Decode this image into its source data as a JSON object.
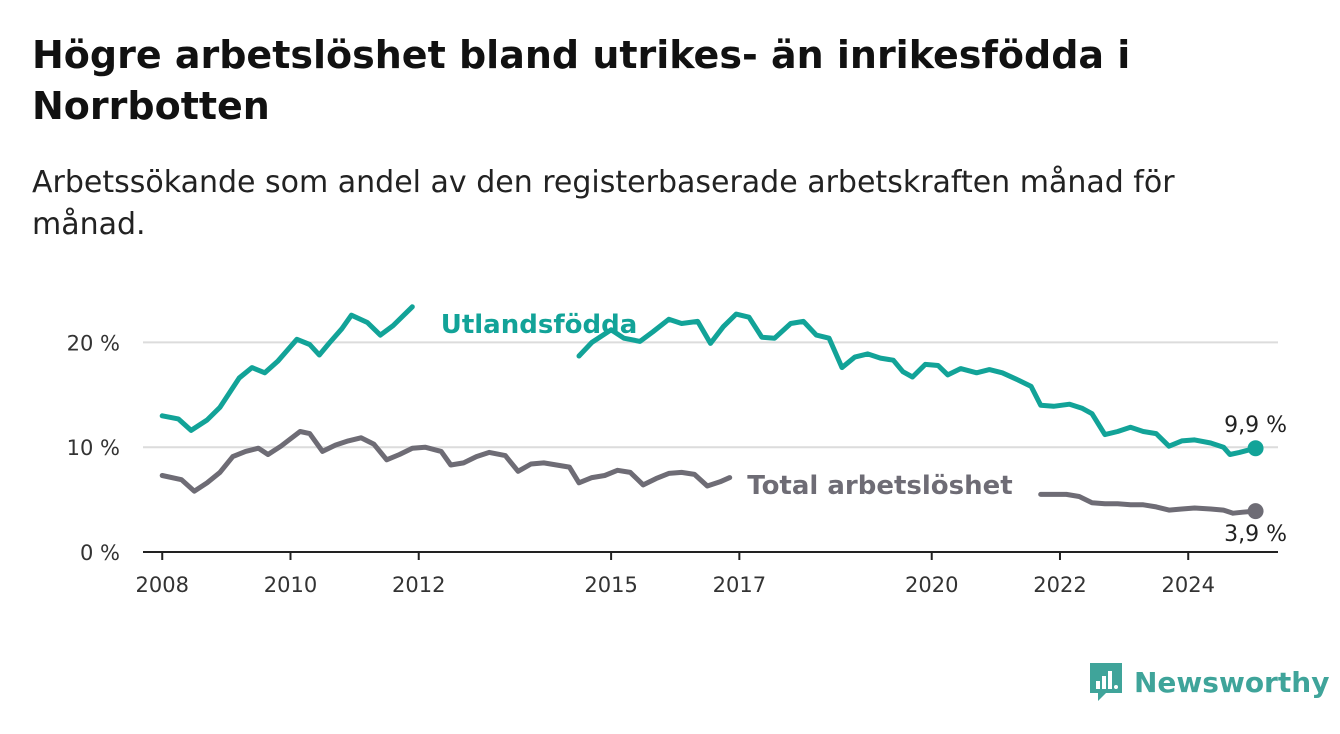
{
  "header": {
    "title": "Högre arbetslöshet bland utrikes- än inrikesfödda i Norrbotten",
    "subtitle": "Arbetssökande som andel av den registerbaserade arbetskraften månad för månad."
  },
  "brand": {
    "name": "Newsworthy",
    "icon": "newsworthy-logo-icon",
    "color": "#3fa49a"
  },
  "colors": {
    "foreign_born": "#12a398",
    "total": "#6e6c75",
    "axis": "#222222",
    "grid": "#dcdcdc"
  },
  "chart_data": {
    "type": "line",
    "y_ticks": [
      "0 %",
      "10 %",
      "20 %"
    ],
    "x_ticks": [
      "2008",
      "2010",
      "2012",
      "2015",
      "2017",
      "2020",
      "2022",
      "2024"
    ],
    "ylim": [
      0,
      25
    ],
    "xlim": [
      2007.7,
      2025.4
    ],
    "grid": true,
    "series": [
      {
        "name": "Utlandsfödda",
        "end_label": "9,9 %",
        "points": [
          [
            2008.0,
            13.0
          ],
          [
            2008.25,
            12.7
          ],
          [
            2008.45,
            11.6
          ],
          [
            2008.7,
            12.6
          ],
          [
            2008.9,
            13.8
          ],
          [
            2009.2,
            16.6
          ],
          [
            2009.4,
            17.6
          ],
          [
            2009.6,
            17.1
          ],
          [
            2009.8,
            18.2
          ],
          [
            2010.0,
            19.6
          ],
          [
            2010.1,
            20.3
          ],
          [
            2010.3,
            19.8
          ],
          [
            2010.45,
            18.8
          ],
          [
            2010.6,
            19.9
          ],
          [
            2010.8,
            21.3
          ],
          [
            2010.95,
            22.6
          ],
          [
            2011.2,
            21.9
          ],
          [
            2011.4,
            20.7
          ],
          [
            2011.6,
            21.6
          ],
          [
            2011.9,
            23.4
          ],
          [
            2014.5,
            18.7
          ],
          [
            2014.7,
            20.0
          ],
          [
            2015.0,
            21.2
          ],
          [
            2015.2,
            20.4
          ],
          [
            2015.45,
            20.1
          ],
          [
            2015.65,
            21.0
          ],
          [
            2015.9,
            22.2
          ],
          [
            2016.1,
            21.8
          ],
          [
            2016.35,
            22.0
          ],
          [
            2016.55,
            19.9
          ],
          [
            2016.75,
            21.5
          ],
          [
            2016.95,
            22.7
          ],
          [
            2017.15,
            22.4
          ],
          [
            2017.35,
            20.5
          ],
          [
            2017.55,
            20.4
          ],
          [
            2017.8,
            21.8
          ],
          [
            2018.0,
            22.0
          ],
          [
            2018.2,
            20.7
          ],
          [
            2018.4,
            20.4
          ],
          [
            2018.6,
            17.6
          ],
          [
            2018.8,
            18.6
          ],
          [
            2019.0,
            18.9
          ],
          [
            2019.2,
            18.5
          ],
          [
            2019.4,
            18.3
          ],
          [
            2019.55,
            17.2
          ],
          [
            2019.7,
            16.7
          ],
          [
            2019.9,
            17.9
          ],
          [
            2020.1,
            17.8
          ],
          [
            2020.25,
            16.9
          ],
          [
            2020.45,
            17.5
          ],
          [
            2020.7,
            17.1
          ],
          [
            2020.9,
            17.4
          ],
          [
            2021.1,
            17.1
          ],
          [
            2021.35,
            16.4
          ],
          [
            2021.55,
            15.8
          ],
          [
            2021.7,
            14.0
          ],
          [
            2021.9,
            13.9
          ],
          [
            2022.15,
            14.1
          ],
          [
            2022.35,
            13.7
          ],
          [
            2022.5,
            13.2
          ],
          [
            2022.7,
            11.2
          ],
          [
            2022.9,
            11.5
          ],
          [
            2023.1,
            11.9
          ],
          [
            2023.3,
            11.5
          ],
          [
            2023.5,
            11.3
          ],
          [
            2023.7,
            10.1
          ],
          [
            2023.9,
            10.6
          ],
          [
            2024.1,
            10.7
          ],
          [
            2024.35,
            10.4
          ],
          [
            2024.55,
            10.0
          ],
          [
            2024.65,
            9.3
          ],
          [
            2024.8,
            9.5
          ],
          [
            2025.05,
            9.9
          ]
        ]
      },
      {
        "name": "Total arbetslöshet",
        "end_label": "3,9 %",
        "points": [
          [
            2008.0,
            7.3
          ],
          [
            2008.3,
            6.9
          ],
          [
            2008.5,
            5.8
          ],
          [
            2008.7,
            6.6
          ],
          [
            2008.9,
            7.6
          ],
          [
            2009.1,
            9.1
          ],
          [
            2009.3,
            9.6
          ],
          [
            2009.5,
            9.9
          ],
          [
            2009.65,
            9.3
          ],
          [
            2009.85,
            10.1
          ],
          [
            2010.0,
            10.8
          ],
          [
            2010.15,
            11.5
          ],
          [
            2010.3,
            11.3
          ],
          [
            2010.5,
            9.6
          ],
          [
            2010.7,
            10.2
          ],
          [
            2010.9,
            10.6
          ],
          [
            2011.1,
            10.9
          ],
          [
            2011.3,
            10.3
          ],
          [
            2011.5,
            8.8
          ],
          [
            2011.7,
            9.3
          ],
          [
            2011.9,
            9.9
          ],
          [
            2012.1,
            10.0
          ],
          [
            2012.35,
            9.6
          ],
          [
            2012.5,
            8.3
          ],
          [
            2012.7,
            8.5
          ],
          [
            2012.9,
            9.1
          ],
          [
            2013.1,
            9.5
          ],
          [
            2013.35,
            9.2
          ],
          [
            2013.55,
            7.7
          ],
          [
            2013.75,
            8.4
          ],
          [
            2013.95,
            8.5
          ],
          [
            2014.15,
            8.3
          ],
          [
            2014.35,
            8.1
          ],
          [
            2014.5,
            6.6
          ],
          [
            2014.7,
            7.1
          ],
          [
            2014.9,
            7.3
          ],
          [
            2015.1,
            7.8
          ],
          [
            2015.3,
            7.6
          ],
          [
            2015.5,
            6.4
          ],
          [
            2015.7,
            7.0
          ],
          [
            2015.9,
            7.5
          ],
          [
            2016.1,
            7.6
          ],
          [
            2016.3,
            7.4
          ],
          [
            2016.5,
            6.3
          ],
          [
            2016.7,
            6.7
          ],
          [
            2016.85,
            7.1
          ],
          [
            2021.7,
            5.5
          ],
          [
            2021.9,
            5.5
          ],
          [
            2022.1,
            5.5
          ],
          [
            2022.3,
            5.3
          ],
          [
            2022.5,
            4.7
          ],
          [
            2022.7,
            4.6
          ],
          [
            2022.9,
            4.6
          ],
          [
            2023.1,
            4.5
          ],
          [
            2023.3,
            4.5
          ],
          [
            2023.5,
            4.3
          ],
          [
            2023.7,
            4.0
          ],
          [
            2023.9,
            4.1
          ],
          [
            2024.1,
            4.2
          ],
          [
            2024.35,
            4.1
          ],
          [
            2024.55,
            4.0
          ],
          [
            2024.7,
            3.7
          ],
          [
            2024.85,
            3.8
          ],
          [
            2025.05,
            3.9
          ]
        ]
      }
    ]
  }
}
